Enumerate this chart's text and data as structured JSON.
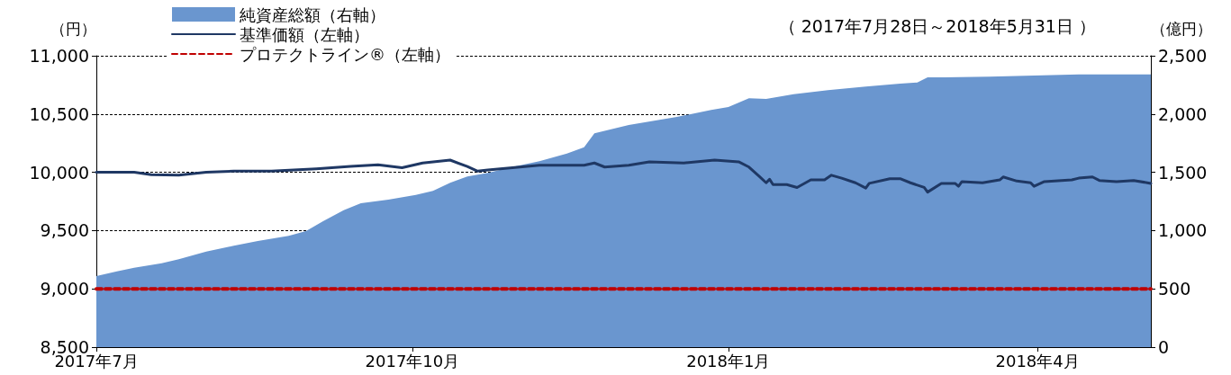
{
  "chart_data": {
    "type": "line",
    "subtitle": "（ 2017年7月28日～2018年5月31日 ）",
    "ylabel": "（円）",
    "y2label": "（億円）",
    "xlim": [
      "2017-07-28",
      "2018-05-31"
    ],
    "xticks": [
      {
        "value": "2017-07-28",
        "label": "2017年7月"
      },
      {
        "value": "2017-10-28",
        "label": "2017年10月"
      },
      {
        "value": "2018-01-28",
        "label": "2018年1月"
      },
      {
        "value": "2018-04-28",
        "label": "2018年4月"
      }
    ],
    "ylim": [
      8500,
      11000
    ],
    "yticks": [
      {
        "value": 8500,
        "label": "8,500"
      },
      {
        "value": 9000,
        "label": "9,000"
      },
      {
        "value": 9500,
        "label": "9,500"
      },
      {
        "value": 10000,
        "label": "10,000"
      },
      {
        "value": 10500,
        "label": "10,500"
      },
      {
        "value": 11000,
        "label": "11,000"
      }
    ],
    "y2lim": [
      0,
      2500
    ],
    "y2ticks": [
      0,
      500,
      {
        "value": 1000,
        "label": "1,000"
      },
      {
        "value": 1500,
        "label": "1,500"
      },
      {
        "value": 2000,
        "label": "2,000"
      },
      {
        "value": 2500,
        "label": "2,500"
      }
    ],
    "grid": "y",
    "legend": "top left",
    "marker": "none",
    "series": [
      {
        "name": "純資産総額（右軸）",
        "type": "area",
        "axis": "y2",
        "color": "#6a96cf",
        "x": [
          "2017-07-28",
          "2017-08-03",
          "2017-08-08",
          "2017-08-16",
          "2017-08-21",
          "2017-08-29",
          "2017-09-06",
          "2017-09-13",
          "2017-09-22",
          "2017-09-27",
          "2017-10-02",
          "2017-10-08",
          "2017-10-13",
          "2017-10-21",
          "2017-10-29",
          "2017-11-03",
          "2017-11-08",
          "2017-11-13",
          "2017-11-19",
          "2017-11-26",
          "2017-12-04",
          "2017-12-12",
          "2017-12-17",
          "2017-12-20",
          "2017-12-30",
          "2018-01-13",
          "2018-01-23",
          "2018-01-28",
          "2018-02-03",
          "2018-02-08",
          "2018-02-16",
          "2018-02-26",
          "2018-03-09",
          "2018-03-19",
          "2018-03-24",
          "2018-03-27",
          "2018-04-01",
          "2018-04-14",
          "2018-04-27",
          "2018-05-10",
          "2018-05-31"
        ],
        "values": [
          610,
          650,
          680,
          720,
          755,
          820,
          870,
          910,
          955,
          995,
          1080,
          1175,
          1235,
          1265,
          1305,
          1340,
          1410,
          1465,
          1495,
          1545,
          1595,
          1660,
          1715,
          1835,
          1905,
          1975,
          2035,
          2060,
          2135,
          2130,
          2170,
          2205,
          2235,
          2260,
          2270,
          2315,
          2315,
          2320,
          2330,
          2340,
          2340
        ]
      },
      {
        "name": "基準価額（左軸）",
        "type": "line",
        "color": "#1f3864",
        "line_style": "solid",
        "x": [
          "2017-07-28",
          "2017-08-08",
          "2017-08-13",
          "2017-08-21",
          "2017-08-29",
          "2017-09-06",
          "2017-09-17",
          "2017-09-30",
          "2017-10-10",
          "2017-10-18",
          "2017-10-25",
          "2017-10-31",
          "2017-11-08",
          "2017-11-13",
          "2017-11-16",
          "2017-11-19",
          "2017-12-04",
          "2017-12-17",
          "2017-12-20",
          "2017-12-23",
          "2017-12-30",
          "2018-01-05",
          "2018-01-15",
          "2018-01-24",
          "2018-01-31",
          "2018-02-03",
          "2018-02-06",
          "2018-02-08",
          "2018-02-09",
          "2018-02-10",
          "2018-02-14",
          "2018-02-17",
          "2018-02-21",
          "2018-02-25",
          "2018-02-27",
          "2018-03-02",
          "2018-03-06",
          "2018-03-09",
          "2018-03-10",
          "2018-03-16",
          "2018-03-19",
          "2018-03-22",
          "2018-03-26",
          "2018-03-27",
          "2018-03-31",
          "2018-04-04",
          "2018-04-05",
          "2018-04-06",
          "2018-04-12",
          "2018-04-17",
          "2018-04-18",
          "2018-04-22",
          "2018-04-26",
          "2018-04-27",
          "2018-04-30",
          "2018-05-08",
          "2018-05-10",
          "2018-05-14",
          "2018-05-16",
          "2018-05-21",
          "2018-05-26",
          "2018-05-31"
        ],
        "values": [
          10000,
          10000,
          9980,
          9975,
          10000,
          10010,
          10010,
          10030,
          10050,
          10065,
          10040,
          10080,
          10105,
          10050,
          10010,
          10020,
          10060,
          10060,
          10080,
          10045,
          10060,
          10090,
          10080,
          10105,
          10090,
          10045,
          9965,
          9910,
          9940,
          9895,
          9895,
          9870,
          9935,
          9935,
          9975,
          9950,
          9910,
          9865,
          9905,
          9945,
          9945,
          9910,
          9870,
          9830,
          9905,
          9905,
          9880,
          9920,
          9910,
          9935,
          9960,
          9925,
          9910,
          9880,
          9920,
          9935,
          9950,
          9960,
          9930,
          9920,
          9930,
          9905
        ]
      },
      {
        "name": "プロテクトライン®（左軸）",
        "type": "line",
        "color": "#c00000",
        "line_style": "dashed",
        "x": [
          "2017-07-28",
          "2018-05-31"
        ],
        "values": [
          9000,
          9000
        ]
      }
    ]
  }
}
